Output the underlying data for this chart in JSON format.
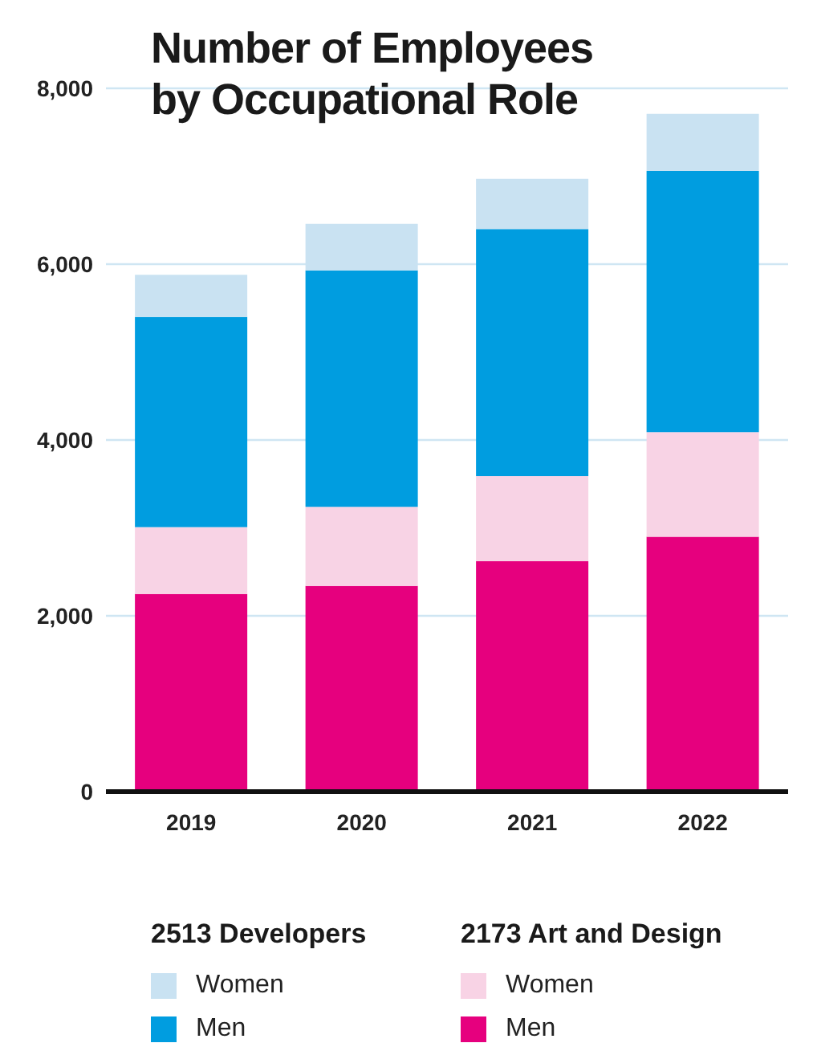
{
  "chart_data": {
    "type": "bar",
    "title": "Number of Employees by Occupational Role",
    "categories": [
      "2019",
      "2020",
      "2021",
      "2022"
    ],
    "stacked": true,
    "series": [
      {
        "name": "Men",
        "color": "#e6007e",
        "values": [
          2250,
          2340,
          2620,
          2900
        ]
      },
      {
        "name": "Women",
        "color": "#f8d3e5",
        "values": [
          760,
          900,
          970,
          1190
        ]
      },
      {
        "name": "Men",
        "color": "#009de0",
        "values": [
          2390,
          2690,
          2810,
          2970
        ]
      },
      {
        "name": "Women",
        "color": "#c9e2f2",
        "values": [
          480,
          530,
          570,
          650
        ]
      }
    ],
    "annotations": [
      "2513 Developers",
      "2173 Art and Design"
    ],
    "ylim": [
      0,
      8000
    ],
    "yticks": [
      {
        "value": 0,
        "label": "0"
      },
      {
        "value": 2000,
        "label": "2,000"
      },
      {
        "value": 4000,
        "label": "4,000"
      },
      {
        "value": 6000,
        "label": "6,000"
      },
      {
        "value": 8000,
        "label": "8,000"
      }
    ],
    "grid": "y",
    "legend": "bottom"
  }
}
